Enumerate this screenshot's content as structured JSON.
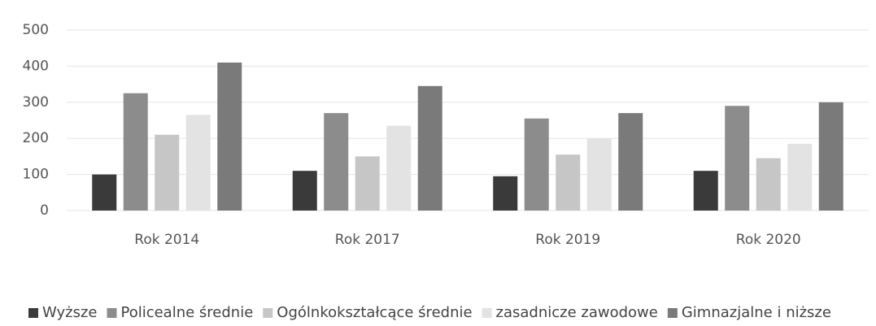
{
  "chart_data": {
    "type": "bar",
    "categories": [
      "Rok 2014",
      "Rok 2017",
      "Rok 2019",
      "Rok 2020"
    ],
    "series": [
      {
        "name": "Wyższe",
        "color": "#3a3a3a",
        "values": [
          100,
          110,
          95,
          110
        ]
      },
      {
        "name": "Policealne średnie",
        "color": "#8c8c8c",
        "values": [
          325,
          270,
          255,
          290
        ]
      },
      {
        "name": "Ogólnkokształcące średnie",
        "color": "#c6c6c6",
        "values": [
          210,
          150,
          155,
          145
        ]
      },
      {
        "name": "zasadnicze zawodowe",
        "color": "#e3e3e3",
        "values": [
          265,
          235,
          200,
          185
        ]
      },
      {
        "name": "Gimnazjalne i niższe",
        "color": "#7a7a7a",
        "values": [
          410,
          345,
          270,
          300
        ]
      }
    ],
    "ylim": [
      0,
      500
    ],
    "yticks": [
      0,
      100,
      200,
      300,
      400,
      500
    ],
    "grid": true,
    "legend": "bottom"
  }
}
